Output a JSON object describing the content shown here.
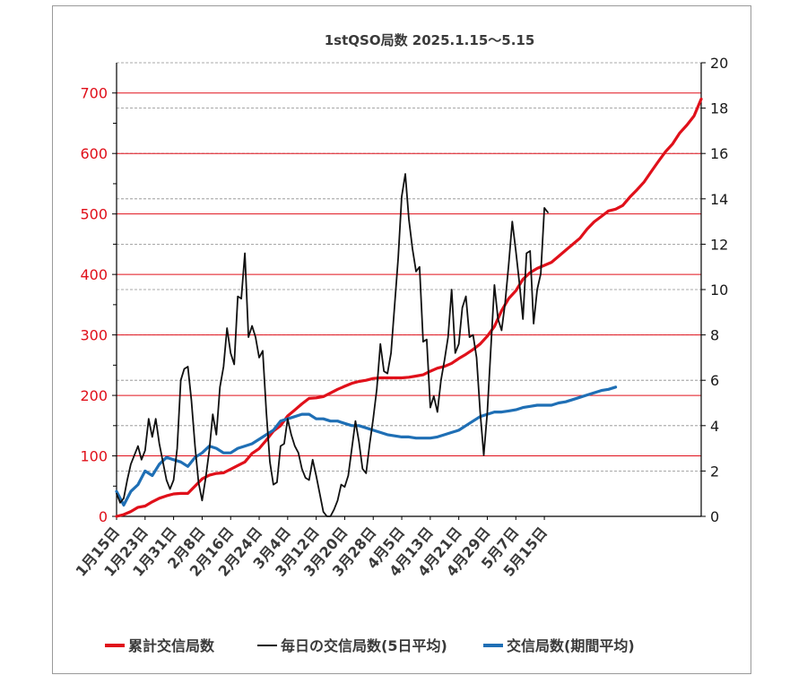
{
  "chart_data": {
    "type": "line",
    "title": "1stQSO局数  2025.1.15～5.15",
    "y_left": {
      "lim": [
        0,
        750
      ],
      "ticks": [
        0,
        100,
        200,
        300,
        400,
        500,
        600,
        700
      ],
      "color": "#e0101a"
    },
    "y_right": {
      "lim": [
        0,
        20
      ],
      "ticks": [
        0,
        2,
        4,
        6,
        8,
        10,
        12,
        14,
        16,
        18,
        20
      ]
    },
    "x_ticks": [
      "1月15日",
      "1月23日",
      "1月31日",
      "2月8日",
      "2月16日",
      "2月24日",
      "3月4日",
      "3月12日",
      "3月20日",
      "3月28日",
      "4月5日",
      "4月13日",
      "4月21日",
      "4月29日",
      "5月7日",
      "5月15日"
    ],
    "grid": "horizontal",
    "legend_position": "bottom",
    "series": [
      {
        "name": "累計交信局数",
        "axis": "left",
        "color": "#e0101a",
        "points": [
          [
            0,
            0
          ],
          [
            2,
            3
          ],
          [
            4,
            8
          ],
          [
            6,
            15
          ],
          [
            8,
            17
          ],
          [
            10,
            24
          ],
          [
            12,
            30
          ],
          [
            14,
            34
          ],
          [
            16,
            37
          ],
          [
            18,
            38
          ],
          [
            20,
            38
          ],
          [
            22,
            50
          ],
          [
            24,
            62
          ],
          [
            26,
            68
          ],
          [
            28,
            71
          ],
          [
            30,
            72
          ],
          [
            32,
            78
          ],
          [
            34,
            84
          ],
          [
            36,
            90
          ],
          [
            38,
            104
          ],
          [
            40,
            112
          ],
          [
            42,
            126
          ],
          [
            44,
            141
          ],
          [
            46,
            150
          ],
          [
            48,
            166
          ],
          [
            50,
            176
          ],
          [
            52,
            186
          ],
          [
            54,
            195
          ],
          [
            56,
            196
          ],
          [
            58,
            198
          ],
          [
            60,
            204
          ],
          [
            62,
            210
          ],
          [
            64,
            215
          ],
          [
            66,
            220
          ],
          [
            68,
            223
          ],
          [
            70,
            225
          ],
          [
            72,
            228
          ],
          [
            74,
            229
          ],
          [
            76,
            229
          ],
          [
            78,
            229
          ],
          [
            80,
            229
          ],
          [
            82,
            230
          ],
          [
            84,
            232
          ],
          [
            86,
            234
          ],
          [
            88,
            240
          ],
          [
            90,
            245
          ],
          [
            92,
            248
          ],
          [
            94,
            253
          ],
          [
            96,
            261
          ],
          [
            98,
            268
          ],
          [
            100,
            276
          ],
          [
            102,
            285
          ],
          [
            104,
            298
          ],
          [
            106,
            314
          ],
          [
            108,
            340
          ],
          [
            110,
            360
          ],
          [
            112,
            373
          ],
          [
            114,
            392
          ],
          [
            116,
            403
          ],
          [
            118,
            410
          ],
          [
            120,
            415
          ],
          [
            122,
            420
          ],
          [
            124,
            430
          ],
          [
            126,
            440
          ],
          [
            128,
            450
          ],
          [
            130,
            460
          ],
          [
            132,
            475
          ],
          [
            134,
            487
          ],
          [
            136,
            496
          ],
          [
            138,
            505
          ],
          [
            140,
            508
          ],
          [
            142,
            514
          ],
          [
            144,
            528
          ],
          [
            146,
            540
          ],
          [
            148,
            553
          ],
          [
            150,
            570
          ],
          [
            152,
            587
          ],
          [
            154,
            603
          ],
          [
            156,
            616
          ],
          [
            158,
            634
          ],
          [
            160,
            647
          ],
          [
            162,
            662
          ],
          [
            164,
            690
          ]
        ]
      },
      {
        "name": "毎日の交信局数(5日平均)",
        "axis": "right",
        "color": "#111111",
        "points": [
          [
            0,
            1.0
          ],
          [
            1,
            0.6
          ],
          [
            2,
            0.8
          ],
          [
            3,
            1.6
          ],
          [
            4,
            2.3
          ],
          [
            5,
            2.7
          ],
          [
            6,
            3.1
          ],
          [
            7,
            2.5
          ],
          [
            8,
            2.9
          ],
          [
            9,
            4.3
          ],
          [
            10,
            3.5
          ],
          [
            11,
            4.3
          ],
          [
            12,
            3.2
          ],
          [
            13,
            2.4
          ],
          [
            14,
            1.6
          ],
          [
            15,
            1.2
          ],
          [
            16,
            1.6
          ],
          [
            17,
            3.0
          ],
          [
            18,
            6.0
          ],
          [
            19,
            6.5
          ],
          [
            20,
            6.6
          ],
          [
            21,
            5.1
          ],
          [
            22,
            3.1
          ],
          [
            23,
            1.5
          ],
          [
            24,
            0.7
          ],
          [
            25,
            1.7
          ],
          [
            26,
            2.9
          ],
          [
            27,
            4.5
          ],
          [
            28,
            3.6
          ],
          [
            29,
            5.7
          ],
          [
            30,
            6.6
          ],
          [
            31,
            8.3
          ],
          [
            32,
            7.2
          ],
          [
            33,
            6.7
          ],
          [
            34,
            9.7
          ],
          [
            35,
            9.6
          ],
          [
            36,
            11.6
          ],
          [
            37,
            7.9
          ],
          [
            38,
            8.4
          ],
          [
            39,
            7.9
          ],
          [
            40,
            7.0
          ],
          [
            41,
            7.3
          ],
          [
            42,
            4.6
          ],
          [
            43,
            2.4
          ],
          [
            44,
            1.4
          ],
          [
            45,
            1.5
          ],
          [
            46,
            3.1
          ],
          [
            47,
            3.2
          ],
          [
            48,
            4.3
          ],
          [
            49,
            3.6
          ],
          [
            50,
            3.1
          ],
          [
            51,
            2.8
          ],
          [
            52,
            2.1
          ],
          [
            53,
            1.7
          ],
          [
            54,
            1.6
          ],
          [
            55,
            2.5
          ],
          [
            56,
            1.8
          ],
          [
            57,
            1.0
          ],
          [
            58,
            0.2
          ],
          [
            59,
            0.0
          ],
          [
            60,
            0.0
          ],
          [
            61,
            0.3
          ],
          [
            62,
            0.7
          ],
          [
            63,
            1.4
          ],
          [
            64,
            1.3
          ],
          [
            65,
            1.8
          ],
          [
            66,
            3.0
          ],
          [
            67,
            4.2
          ],
          [
            68,
            3.3
          ],
          [
            69,
            2.1
          ],
          [
            70,
            1.9
          ],
          [
            71,
            3.2
          ],
          [
            72,
            4.3
          ],
          [
            73,
            5.6
          ],
          [
            74,
            7.6
          ],
          [
            75,
            6.4
          ],
          [
            76,
            6.3
          ],
          [
            77,
            7.2
          ],
          [
            78,
            9.3
          ],
          [
            79,
            11.4
          ],
          [
            80,
            14.1
          ],
          [
            81,
            15.1
          ],
          [
            82,
            13.1
          ],
          [
            83,
            11.8
          ],
          [
            84,
            10.8
          ],
          [
            85,
            11.0
          ],
          [
            86,
            7.7
          ],
          [
            87,
            7.8
          ],
          [
            88,
            4.8
          ],
          [
            89,
            5.3
          ],
          [
            90,
            4.6
          ],
          [
            91,
            6.0
          ],
          [
            92,
            6.9
          ],
          [
            93,
            7.9
          ],
          [
            94,
            10.0
          ],
          [
            95,
            7.2
          ],
          [
            96,
            7.6
          ],
          [
            97,
            9.2
          ],
          [
            98,
            9.7
          ],
          [
            99,
            7.9
          ],
          [
            100,
            8.0
          ],
          [
            101,
            7.0
          ],
          [
            102,
            4.6
          ],
          [
            103,
            2.7
          ],
          [
            104,
            4.6
          ],
          [
            105,
            7.4
          ],
          [
            106,
            10.2
          ],
          [
            107,
            8.7
          ],
          [
            108,
            8.2
          ],
          [
            109,
            9.4
          ],
          [
            110,
            11.1
          ],
          [
            111,
            13.0
          ],
          [
            112,
            11.7
          ],
          [
            113,
            10.3
          ],
          [
            114,
            8.7
          ],
          [
            115,
            11.6
          ],
          [
            116,
            11.7
          ],
          [
            117,
            8.5
          ],
          [
            118,
            10.0
          ],
          [
            119,
            10.7
          ],
          [
            120,
            13.6
          ],
          [
            121,
            13.4
          ]
        ]
      },
      {
        "name": "交信局数(期間平均)",
        "axis": "right",
        "color": "#1f6fb5",
        "points": [
          [
            0,
            1.1
          ],
          [
            2,
            0.5
          ],
          [
            4,
            1.1
          ],
          [
            6,
            1.4
          ],
          [
            8,
            2.0
          ],
          [
            10,
            1.8
          ],
          [
            12,
            2.3
          ],
          [
            14,
            2.6
          ],
          [
            16,
            2.5
          ],
          [
            18,
            2.4
          ],
          [
            20,
            2.2
          ],
          [
            22,
            2.6
          ],
          [
            24,
            2.8
          ],
          [
            26,
            3.1
          ],
          [
            28,
            3.0
          ],
          [
            30,
            2.8
          ],
          [
            32,
            2.8
          ],
          [
            34,
            3.0
          ],
          [
            36,
            3.1
          ],
          [
            38,
            3.2
          ],
          [
            40,
            3.4
          ],
          [
            42,
            3.6
          ],
          [
            44,
            3.8
          ],
          [
            46,
            4.2
          ],
          [
            48,
            4.3
          ],
          [
            50,
            4.4
          ],
          [
            52,
            4.5
          ],
          [
            54,
            4.5
          ],
          [
            56,
            4.3
          ],
          [
            58,
            4.3
          ],
          [
            60,
            4.2
          ],
          [
            62,
            4.2
          ],
          [
            64,
            4.1
          ],
          [
            66,
            4.0
          ],
          [
            68,
            4.0
          ],
          [
            70,
            3.9
          ],
          [
            72,
            3.8
          ],
          [
            74,
            3.7
          ],
          [
            76,
            3.6
          ],
          [
            78,
            3.55
          ],
          [
            80,
            3.5
          ],
          [
            82,
            3.5
          ],
          [
            84,
            3.45
          ],
          [
            86,
            3.45
          ],
          [
            88,
            3.45
          ],
          [
            90,
            3.5
          ],
          [
            92,
            3.6
          ],
          [
            94,
            3.7
          ],
          [
            96,
            3.8
          ],
          [
            98,
            4.0
          ],
          [
            100,
            4.2
          ],
          [
            102,
            4.4
          ],
          [
            104,
            4.5
          ],
          [
            106,
            4.6
          ],
          [
            108,
            4.6
          ],
          [
            110,
            4.65
          ],
          [
            112,
            4.7
          ],
          [
            114,
            4.8
          ],
          [
            116,
            4.85
          ],
          [
            118,
            4.9
          ],
          [
            120,
            4.9
          ],
          [
            122,
            4.9
          ],
          [
            124,
            5.0
          ],
          [
            126,
            5.05
          ],
          [
            128,
            5.15
          ],
          [
            130,
            5.25
          ],
          [
            132,
            5.35
          ],
          [
            134,
            5.45
          ],
          [
            136,
            5.55
          ],
          [
            138,
            5.6
          ],
          [
            140,
            5.7
          ]
        ]
      }
    ]
  }
}
